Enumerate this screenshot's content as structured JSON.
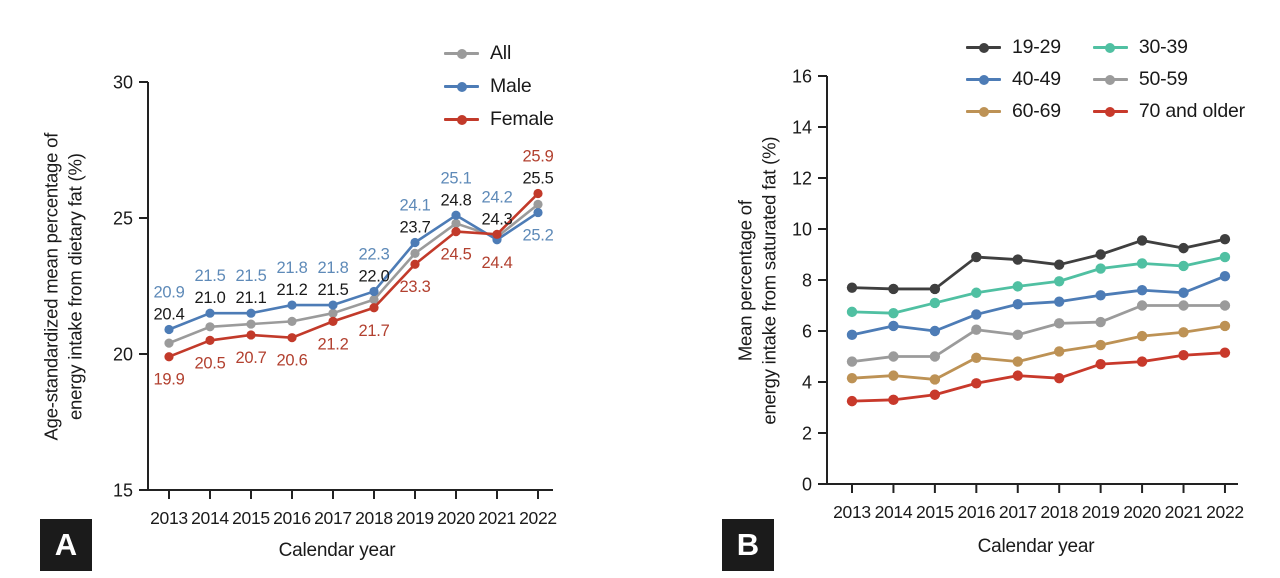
{
  "figure": {
    "panel_labels": [
      "A",
      "B"
    ]
  },
  "chart_data": [
    {
      "id": "panel-a",
      "type": "line",
      "ylabel_lines": [
        "Age-standardized mean percentage of",
        "energy intake from dietary fat (%)"
      ],
      "xlabel": "Calendar year",
      "x": [
        2013,
        2014,
        2015,
        2016,
        2017,
        2018,
        2019,
        2020,
        2021,
        2022
      ],
      "ylim": [
        15,
        30
      ],
      "yticks": [
        15,
        20,
        25,
        30
      ],
      "legend_position": "top-right",
      "grid": false,
      "point_labels": true,
      "series": [
        {
          "name": "All",
          "color": "#9b9b9b",
          "label_color": "#1a1a1a",
          "values": [
            20.4,
            21.0,
            21.1,
            21.2,
            21.5,
            22.0,
            23.7,
            24.8,
            24.3,
            25.5
          ]
        },
        {
          "name": "Male",
          "color": "#4d7cb6",
          "label_color": "#5e8ab8",
          "values": [
            20.9,
            21.5,
            21.5,
            21.8,
            21.8,
            22.3,
            24.1,
            25.1,
            24.2,
            25.2
          ]
        },
        {
          "name": "Female",
          "color": "#c23a2a",
          "label_color": "#b2402f",
          "values": [
            19.9,
            20.5,
            20.7,
            20.6,
            21.2,
            21.7,
            23.3,
            24.5,
            24.4,
            25.9
          ]
        }
      ]
    },
    {
      "id": "panel-b",
      "type": "line",
      "ylabel_lines": [
        "Mean percentage of",
        "energy intake from saturated fat (%)"
      ],
      "xlabel": "Calendar year",
      "x": [
        2013,
        2014,
        2015,
        2016,
        2017,
        2018,
        2019,
        2020,
        2021,
        2022
      ],
      "ylim": [
        0,
        16
      ],
      "yticks": [
        0,
        2,
        4,
        6,
        8,
        10,
        12,
        14,
        16
      ],
      "legend_position": "top-right",
      "grid": false,
      "point_labels": false,
      "series": [
        {
          "name": "19-29",
          "color": "#3f3f3f",
          "values": [
            7.7,
            7.65,
            7.65,
            8.9,
            8.8,
            8.6,
            9.0,
            9.55,
            9.25,
            9.6
          ]
        },
        {
          "name": "30-39",
          "color": "#50c0a2",
          "values": [
            6.75,
            6.7,
            7.1,
            7.5,
            7.75,
            7.95,
            8.45,
            8.65,
            8.55,
            8.9
          ]
        },
        {
          "name": "40-49",
          "color": "#4d7cb6",
          "values": [
            5.85,
            6.2,
            6.0,
            6.65,
            7.05,
            7.15,
            7.4,
            7.6,
            7.5,
            8.15
          ]
        },
        {
          "name": "50-59",
          "color": "#9b9b9b",
          "values": [
            4.8,
            5.0,
            5.0,
            6.05,
            5.85,
            6.3,
            6.35,
            7.0,
            7.0,
            7.0
          ]
        },
        {
          "name": "60-69",
          "color": "#bd9255",
          "values": [
            4.15,
            4.25,
            4.1,
            4.95,
            4.8,
            5.2,
            5.45,
            5.8,
            5.95,
            6.2
          ]
        },
        {
          "name": "70 and older",
          "color": "#c8392b",
          "values": [
            3.25,
            3.3,
            3.5,
            3.95,
            4.25,
            4.15,
            4.7,
            4.8,
            5.05,
            5.15
          ]
        }
      ]
    }
  ]
}
